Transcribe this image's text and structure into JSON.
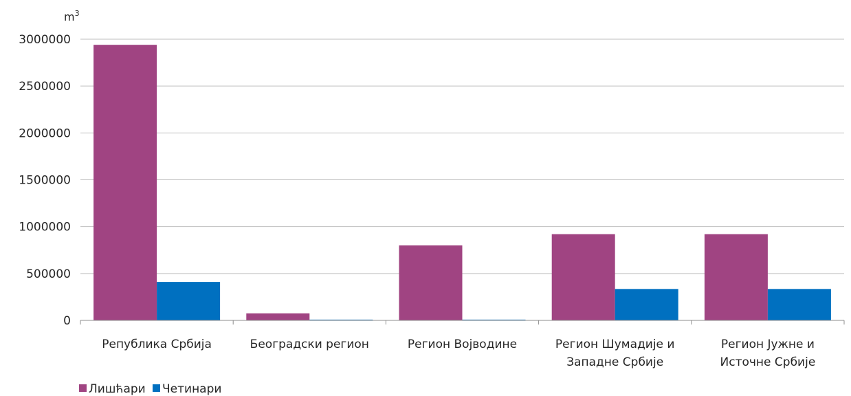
{
  "chart_data": {
    "type": "bar",
    "ylabel": "m",
    "ylabel_superscript": "3",
    "categories": [
      [
        "Република Србија"
      ],
      [
        "Београдски регион"
      ],
      [
        "Регион Војводине"
      ],
      [
        "Регион Шумадије и",
        "Западне Србије"
      ],
      [
        "Регион Јужне и",
        "Источне Србије"
      ]
    ],
    "series": [
      {
        "name": "Лишћари",
        "color": "#a04482",
        "values": [
          2940000,
          75000,
          800000,
          920000,
          920000
        ]
      },
      {
        "name": "Четинари",
        "color": "#0070c0",
        "values": [
          410000,
          8000,
          8000,
          335000,
          335000
        ]
      }
    ],
    "ylim": [
      0,
      3000000
    ],
    "yticks": [
      "0",
      "500000",
      "1000000",
      "1500000",
      "2000000",
      "2500000",
      "3000000"
    ],
    "grid": true,
    "legend": "bottom-left"
  }
}
